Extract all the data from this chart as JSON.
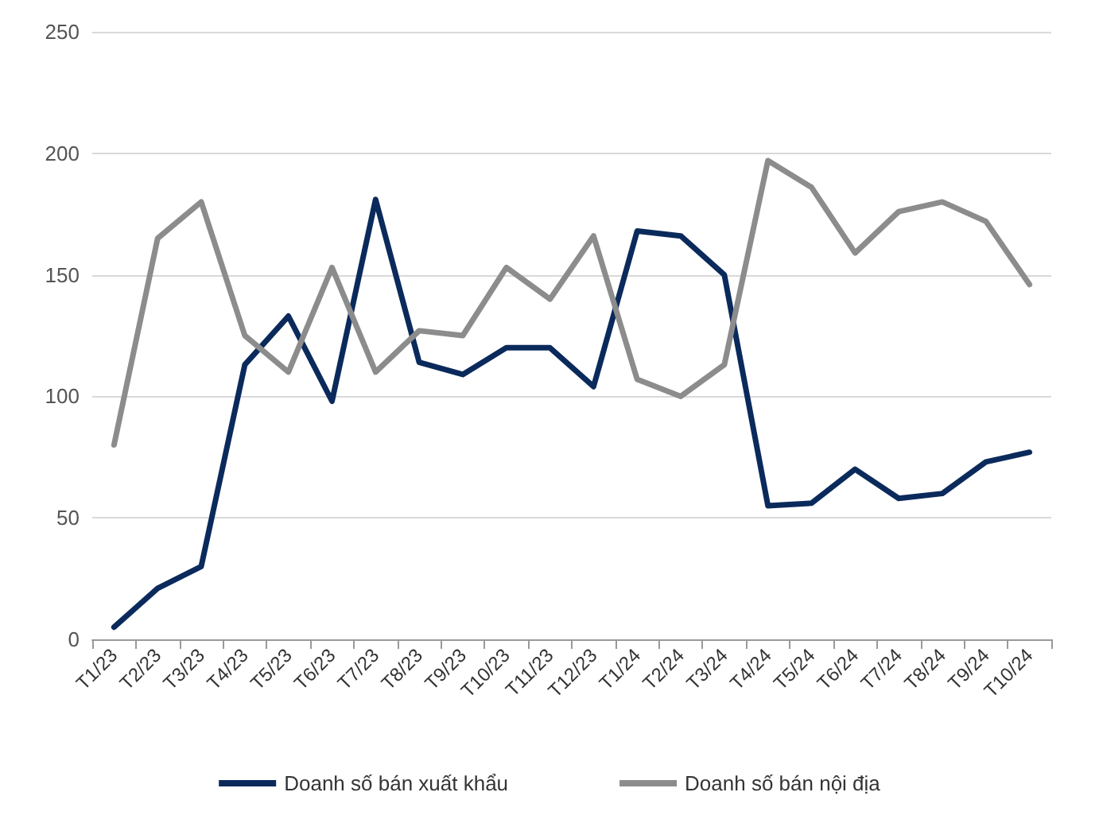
{
  "chart_data": {
    "type": "line",
    "categories": [
      "T1/23",
      "T2/23",
      "T3/23",
      "T4/23",
      "T5/23",
      "T6/23",
      "T7/23",
      "T8/23",
      "T9/23",
      "T10/23",
      "T11/23",
      "T12/23",
      "T1/24",
      "T2/24",
      "T3/24",
      "T4/24",
      "T5/24",
      "T6/24",
      "T7/24",
      "T8/24",
      "T9/24",
      "T10/24"
    ],
    "series": [
      {
        "name": "Doanh số bán xuất khẩu",
        "color": "#0b2a5c",
        "values": [
          5,
          21,
          30,
          113,
          133,
          98,
          181,
          114,
          109,
          120,
          120,
          104,
          168,
          166,
          150,
          55,
          56,
          70,
          58,
          60,
          73,
          77
        ]
      },
      {
        "name": "Doanh số bán nội địa",
        "color": "#8c8c8c",
        "values": [
          80,
          165,
          180,
          125,
          110,
          153,
          110,
          127,
          125,
          153,
          140,
          166,
          107,
          100,
          113,
          197,
          186,
          159,
          176,
          180,
          172,
          146
        ]
      }
    ],
    "ylim": [
      0,
      250
    ],
    "yticks": [
      0,
      50,
      100,
      150,
      200,
      250
    ],
    "grid": "y",
    "legend": "bottom",
    "marker": "none",
    "line_style": "solid"
  }
}
